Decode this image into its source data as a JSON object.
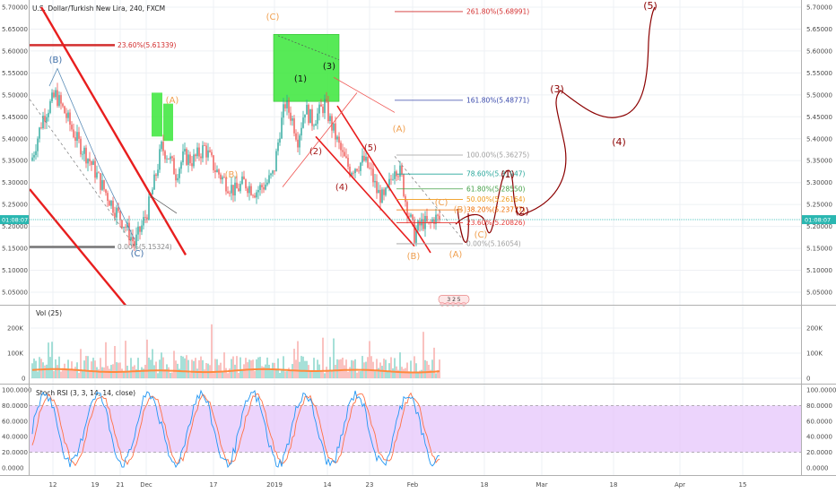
{
  "chart_data": [
    {
      "panel": "price",
      "type": "candlestick",
      "title": "U.S. Dollar/Turkish New Lira, 240, FXCM",
      "y_ticks": [
        "5.70000",
        "5.65000",
        "5.60000",
        "5.55000",
        "5.50000",
        "5.45000",
        "5.40000",
        "5.35000",
        "5.30000",
        "5.25000",
        "5.20000",
        "5.15000",
        "5.10000",
        "5.05000"
      ],
      "ylim": [
        5.015,
        5.715
      ],
      "x_ticks": [
        "12",
        "19",
        "21",
        "Dec",
        "17",
        "2019",
        "14",
        "23",
        "Feb",
        "18",
        "Mar",
        "18",
        "Apr",
        "15"
      ],
      "current_price_tag": "01:08:07",
      "current_price": 5.2155,
      "fib_levels": [
        {
          "label": "261.80%(5.68991)",
          "value": 5.68991,
          "color": "#d32f2f"
        },
        {
          "label": "161.80%(5.48771)",
          "value": 5.48771,
          "color": "#3949ab"
        },
        {
          "label": "100.00%(5.36275)",
          "value": 5.36275,
          "color": "#9e9e9e"
        },
        {
          "label": "78.60%(5.31947)",
          "value": 5.31947,
          "color": "#26a69a"
        },
        {
          "label": "61.80%(5.28550)",
          "value": 5.2855,
          "color": "#43a047"
        },
        {
          "label": "50.00%(5.26164)",
          "value": 5.26164,
          "color": "#ef9a1a"
        },
        {
          "label": "38.20%(5.23777)",
          "value": 5.23777,
          "color": "#ef6c00"
        },
        {
          "label": "23.60%(5.20826)",
          "value": 5.20826,
          "color": "#e53935"
        },
        {
          "label": "0.00%(5.16054)",
          "value": 5.16054,
          "color": "#9e9e9e"
        }
      ],
      "left_levels": [
        {
          "label": "23.60%(5.61339)",
          "value": 5.61339,
          "color": "#d32f2f"
        },
        {
          "label": "0.00%(5.15324)",
          "value": 5.15324,
          "color": "#757575"
        }
      ],
      "wave_labels": [
        {
          "text": "(B)",
          "color": "#3f6fa8"
        },
        {
          "text": "(C)",
          "color": "#3f6fa8"
        },
        {
          "text": "(A)",
          "color": "#f0a050"
        },
        {
          "text": "(B)",
          "color": "#f0a050"
        },
        {
          "text": "(C)",
          "color": "#f0a050"
        },
        {
          "text": "(1)",
          "color": "#111111"
        },
        {
          "text": "(3)",
          "color": "#111111"
        },
        {
          "text": "(2)",
          "color": "#a31515"
        },
        {
          "text": "(4)",
          "color": "#a31515"
        },
        {
          "text": "(5)",
          "color": "#a31515"
        },
        {
          "text": "(A)",
          "color": "#f0a050"
        },
        {
          "text": "(C)",
          "color": "#f0a050"
        },
        {
          "text": "(B)",
          "color": "#f0a050"
        },
        {
          "text": "(B)",
          "color": "#f0a050"
        },
        {
          "text": "(C)",
          "color": "#f0a050"
        },
        {
          "text": "(A)",
          "color": "#f0a050"
        },
        {
          "text": "(1)",
          "color": "#8b0000"
        },
        {
          "text": "(2)",
          "color": "#8b0000"
        },
        {
          "text": "(3)",
          "color": "#8b0000"
        },
        {
          "text": "(4)",
          "color": "#8b0000"
        },
        {
          "text": "(5)",
          "color": "#8b0000"
        }
      ],
      "events_label": "3 2 5"
    },
    {
      "panel": "volume",
      "type": "bar",
      "title": "Vol (25)",
      "y_ticks": [
        "200K",
        "100K",
        "0"
      ],
      "ylim": [
        0,
        250000
      ]
    },
    {
      "panel": "stoch_rsi",
      "type": "line",
      "title": "Stoch RSI (3, 3, 14, 14, close)",
      "y_ticks": [
        "100.0000",
        "80.0000",
        "60.0000",
        "40.0000",
        "20.0000",
        "0.0000"
      ],
      "ylim": [
        0,
        100
      ],
      "band": [
        20,
        80
      ]
    }
  ],
  "colors": {
    "up": "#26a69a",
    "down": "#ef5350",
    "channel": "#e81e1e",
    "box": "#39e639",
    "stoch_k": "#2196f3",
    "stoch_d": "#ff7043",
    "band_fill": "#e6c6fb",
    "price_tag": "#2ab7b1"
  }
}
